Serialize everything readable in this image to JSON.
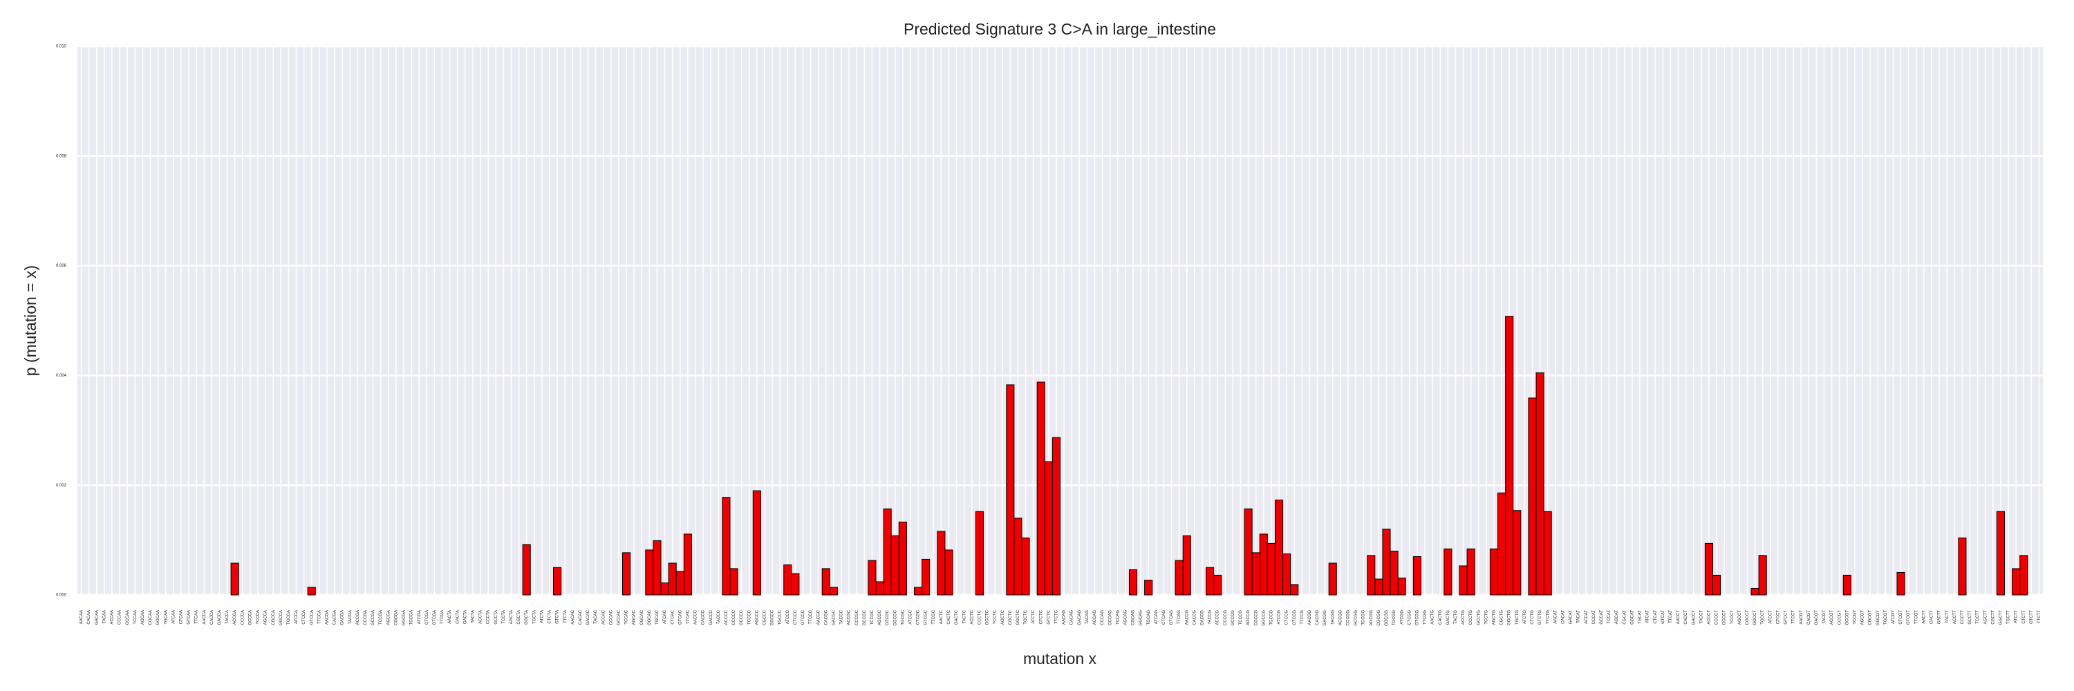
{
  "chart_data": {
    "type": "bar",
    "title": "Predicted Signature 3 C>A in large_intestine",
    "x_label": "mutation x",
    "y_label": "p (mutation = x)",
    "color": "#ee0000",
    "grid": true,
    "ylim": [
      0,
      0.01
    ],
    "yticks": [
      {
        "value": 0,
        "label": "0.000"
      },
      {
        "value": 0.002,
        "label": "0.002"
      },
      {
        "value": 0.004,
        "label": "0.004"
      },
      {
        "value": 0.006,
        "label": "0.006"
      },
      {
        "value": 0.008,
        "label": "0.008"
      },
      {
        "value": 0.01,
        "label": "0.010"
      }
    ],
    "categories": [
      "AACAA",
      "CACAA",
      "GACAA",
      "TACAA",
      "ACCAA",
      "CCCAA",
      "GCCAA",
      "TCCAA",
      "AGCAA",
      "CGCAA",
      "GGCAA",
      "TGCAA",
      "ATCAA",
      "CTCAA",
      "GTCAA",
      "TTCAA",
      "AACCA",
      "CACCA",
      "GACCA",
      "TACCA",
      "ACCCA",
      "CCCCA",
      "GCCCA",
      "TCCCA",
      "AGCCA",
      "CGCCA",
      "GGCCA",
      "TGCCA",
      "ATCCA",
      "CTCCA",
      "GTCCA",
      "TTCCA",
      "AACGA",
      "CACGA",
      "GACGA",
      "TACGA",
      "ACCGA",
      "CCCGA",
      "GCCGA",
      "TCCGA",
      "AGCGA",
      "CGCGA",
      "GGCGA",
      "TGCGA",
      "ATCGA",
      "CTCGA",
      "GTCGA",
      "TTCGA",
      "AACTA",
      "CACTA",
      "GACTA",
      "TACTA",
      "ACCTA",
      "CCCTA",
      "GCCTA",
      "TCCTA",
      "AGCTA",
      "CGCTA",
      "GGCTA",
      "TGCTA",
      "ATCTA",
      "CTCTA",
      "GTCTA",
      "TTCTA",
      "AACAC",
      "CACAC",
      "GACAC",
      "TACAC",
      "ACCAC",
      "CCCAC",
      "GCCAC",
      "TCCAC",
      "AGCAC",
      "CGCAC",
      "GGCAC",
      "TGCAC",
      "ATCAC",
      "CTCAC",
      "GTCAC",
      "TTCAC",
      "AACCC",
      "CACCC",
      "GACCC",
      "TACCC",
      "ACCCC",
      "CCCCC",
      "GCCCC",
      "TCCCC",
      "AGCCC",
      "CGCCC",
      "GGCCC",
      "TGCCC",
      "ATCCC",
      "CTCCC",
      "GTCCC",
      "TTCCC",
      "AACGC",
      "CACGC",
      "GACGC",
      "TACGC",
      "ACCGC",
      "CCCGC",
      "GCCGC",
      "TCCGC",
      "AGCGC",
      "CGCGC",
      "GGCGC",
      "TGCGC",
      "ATCGC",
      "CTCGC",
      "GTCGC",
      "TTCGC",
      "AACTC",
      "CACTC",
      "GACTC",
      "TACTC",
      "ACCTC",
      "CCCTC",
      "GCCTC",
      "TCCTC",
      "AGCTC",
      "CGCTC",
      "GGCTC",
      "TGCTC",
      "ATCTC",
      "CTCTC",
      "GTCTC",
      "TTCTC",
      "AACAG",
      "CACAG",
      "GACAG",
      "TACAG",
      "ACCAG",
      "CCCAG",
      "GCCAG",
      "TCCAG",
      "AGCAG",
      "CGCAG",
      "GGCAG",
      "TGCAG",
      "ATCAG",
      "CTCAG",
      "GTCAG",
      "TTCAG",
      "AACCG",
      "CACCG",
      "GACCG",
      "TACCG",
      "ACCCG",
      "CCCCG",
      "GCCCG",
      "TCCCG",
      "AGCCG",
      "CGCCG",
      "GGCCG",
      "TGCCG",
      "ATCCG",
      "CTCCG",
      "GTCCG",
      "TTCCG",
      "AACGG",
      "CACGG",
      "GACGG",
      "TACGG",
      "ACCGG",
      "CCCGG",
      "GCCGG",
      "TCCGG",
      "AGCGG",
      "CGCGG",
      "GGCGG",
      "TGCGG",
      "ATCGG",
      "CTCGG",
      "GTCGG",
      "TTCGG",
      "AACTG",
      "CACTG",
      "GACTG",
      "TACTG",
      "ACCTG",
      "CCCTG",
      "GCCTG",
      "TCCTG",
      "AGCTG",
      "CGCTG",
      "GGCTG",
      "TGCTG",
      "ATCTG",
      "CTCTG",
      "GTCTG",
      "TTCTG",
      "AACAT",
      "CACAT",
      "GACAT",
      "TACAT",
      "ACCAT",
      "CCCAT",
      "GCCAT",
      "TCCAT",
      "AGCAT",
      "CGCAT",
      "GGCAT",
      "TGCAT",
      "ATCAT",
      "CTCAT",
      "GTCAT",
      "TTCAT",
      "AACCT",
      "CACCT",
      "GACCT",
      "TACCT",
      "ACCCT",
      "CCCCT",
      "GCCCT",
      "TCCCT",
      "AGCCT",
      "CGCCT",
      "GGCCT",
      "TGCCT",
      "ATCCT",
      "CTCCT",
      "GTCCT",
      "TTCCT",
      "AACGT",
      "CACGT",
      "GACGT",
      "TACGT",
      "ACCGT",
      "CCCGT",
      "GCCGT",
      "TCCGT",
      "AGCGT",
      "CGCGT",
      "GGCGT",
      "TGCGT",
      "ATCGT",
      "CTCGT",
      "GTCGT",
      "TTCGT",
      "AACTT",
      "CACTT",
      "GACTT",
      "TACTT",
      "ACCTT",
      "CCCTT",
      "GCCTT",
      "TCCTT",
      "AGCTT",
      "CGCTT",
      "GGCTT",
      "TGCTT",
      "ATCTT",
      "CTCTT",
      "GTCTT",
      "TTCTT"
    ],
    "values": [
      0,
      0,
      0,
      0,
      0,
      0,
      0,
      0,
      0,
      0,
      0,
      0,
      0,
      0,
      0,
      0,
      0,
      0,
      0,
      0,
      0.00058,
      0,
      0,
      0,
      0,
      0,
      0,
      0,
      0,
      0,
      0.00014,
      0,
      0,
      0,
      0,
      0,
      0,
      0,
      0,
      0,
      0,
      0,
      0,
      0,
      0,
      0,
      0,
      0,
      0,
      0,
      0,
      0,
      0,
      0,
      0,
      0,
      0,
      0,
      0.00092,
      0,
      0,
      0,
      0.0005,
      0,
      0,
      0,
      0,
      0,
      0,
      0,
      0,
      0.00077,
      0,
      0,
      0.00082,
      0.00099,
      0.00022,
      0.00058,
      0.00043,
      0.00111,
      0,
      0,
      0,
      0,
      0.00178,
      0.00048,
      0,
      0,
      0.0019,
      0,
      0,
      0,
      0.00055,
      0.00039,
      0,
      0,
      0,
      0.00048,
      0.00014,
      0,
      0,
      0,
      0,
      0.00063,
      0.00024,
      0.00157,
      0.00108,
      0.00133,
      0,
      0.00014,
      0.00065,
      0,
      0.00116,
      0.00082,
      0,
      0,
      0,
      0.00152,
      0,
      0,
      0,
      0.00383,
      0.0014,
      0.00104,
      0,
      0.00388,
      0.00243,
      0.00287,
      0,
      0,
      0,
      0,
      0,
      0,
      0,
      0,
      0,
      0.00046,
      0,
      0.00027,
      0,
      0,
      0,
      0.00063,
      0.00108,
      0,
      0,
      0.0005,
      0.00036,
      0,
      0,
      0,
      0.00157,
      0.00077,
      0.00111,
      0.00094,
      0.00173,
      0.00075,
      0.00019,
      0,
      0,
      0,
      0,
      0.00058,
      0,
      0,
      0,
      0,
      0.00072,
      0.00029,
      0.0012,
      0.0008,
      0.00031,
      0,
      0.0007,
      0,
      0,
      0,
      0.00084,
      0,
      0.00053,
      0.00084,
      0,
      0,
      0.00084,
      0.00186,
      0.00508,
      0.00154,
      0,
      0.00359,
      0.00405,
      0.00152,
      0,
      0,
      0,
      0,
      0,
      0,
      0,
      0,
      0,
      0,
      0,
      0,
      0,
      0,
      0,
      0,
      0,
      0,
      0,
      0,
      0.00094,
      0.00036,
      0,
      0,
      0,
      0,
      0.00012,
      0.00072,
      0,
      0,
      0,
      0,
      0,
      0,
      0,
      0,
      0,
      0,
      0.00036,
      0,
      0,
      0,
      0,
      0,
      0,
      0.00041,
      0,
      0,
      0,
      0,
      0,
      0,
      0,
      0.00104,
      0,
      0,
      0,
      0,
      0.00152,
      0,
      0.00048,
      0.00072,
      0,
      0
    ]
  }
}
